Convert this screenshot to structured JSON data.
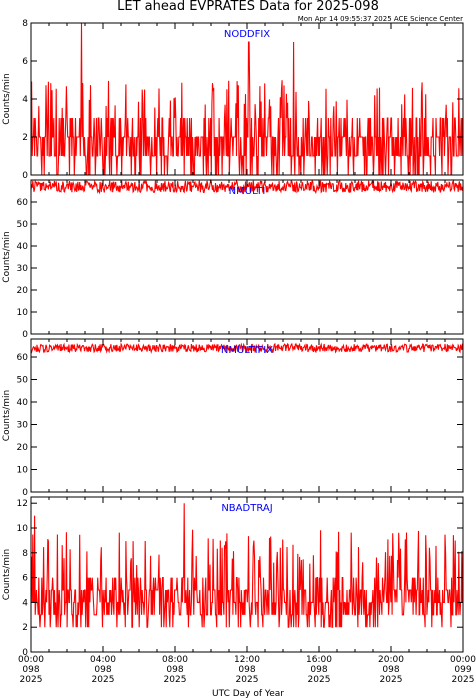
{
  "title": "LET ahead EVPRATES Data for 2025-098",
  "timestamp": "Mon Apr 14 09:55:37 2025 ACE Science Center",
  "xlabel": "UTC Day of Year",
  "x_ticks": [
    {
      "time": "00:00",
      "doy": "098",
      "year": "2025"
    },
    {
      "time": "04:00",
      "doy": "098",
      "year": "2025"
    },
    {
      "time": "08:00",
      "doy": "098",
      "year": "2025"
    },
    {
      "time": "12:00",
      "doy": "098",
      "year": "2025"
    },
    {
      "time": "16:00",
      "doy": "098",
      "year": "2025"
    },
    {
      "time": "20:00",
      "doy": "098",
      "year": "2025"
    },
    {
      "time": "00:00",
      "doy": "099",
      "year": "2025"
    }
  ],
  "colors": {
    "series": "#ff0000",
    "label": "#0000ff",
    "axis": "#000000"
  },
  "chart_data": [
    {
      "type": "line",
      "series_label": "NODDFIX",
      "ylabel": "Counts/min",
      "ylim": [
        0,
        8
      ],
      "yticks": [
        0,
        2,
        4,
        6,
        8
      ],
      "xlim_hours": [
        0,
        24
      ],
      "values_summary": {
        "baseline": [
          0,
          3
        ],
        "typical_max": 5,
        "spikes": [
          {
            "hour": 2.8,
            "value": 8
          },
          {
            "hour": 12.1,
            "value": 7
          },
          {
            "hour": 14.6,
            "value": 7
          }
        ]
      }
    },
    {
      "type": "line",
      "series_label": "NMULTI",
      "ylabel": "Counts/min",
      "ylim": [
        0,
        70
      ],
      "yticks": [
        0,
        10,
        20,
        30,
        40,
        50,
        60
      ],
      "xlim_hours": [
        0,
        24
      ],
      "values_summary": {
        "mean": 67,
        "range": [
          64,
          70
        ]
      }
    },
    {
      "type": "line",
      "series_label": "NMULTIFIX",
      "ylabel": "Counts/min",
      "ylim": [
        0,
        68
      ],
      "yticks": [
        0,
        10,
        20,
        30,
        40,
        50,
        60
      ],
      "xlim_hours": [
        0,
        24
      ],
      "values_summary": {
        "mean": 64,
        "range": [
          62,
          66
        ]
      }
    },
    {
      "type": "line",
      "series_label": "NBADTRAJ",
      "ylabel": "Counts/min",
      "ylim": [
        0,
        12.5
      ],
      "yticks": [
        0,
        2,
        4,
        6,
        8,
        10,
        12
      ],
      "xlim_hours": [
        0,
        24
      ],
      "values_summary": {
        "baseline": [
          2,
          6
        ],
        "typical_max": 10,
        "spikes": [
          {
            "hour": 0.2,
            "value": 11
          },
          {
            "hour": 8.5,
            "value": 12
          }
        ]
      }
    }
  ]
}
